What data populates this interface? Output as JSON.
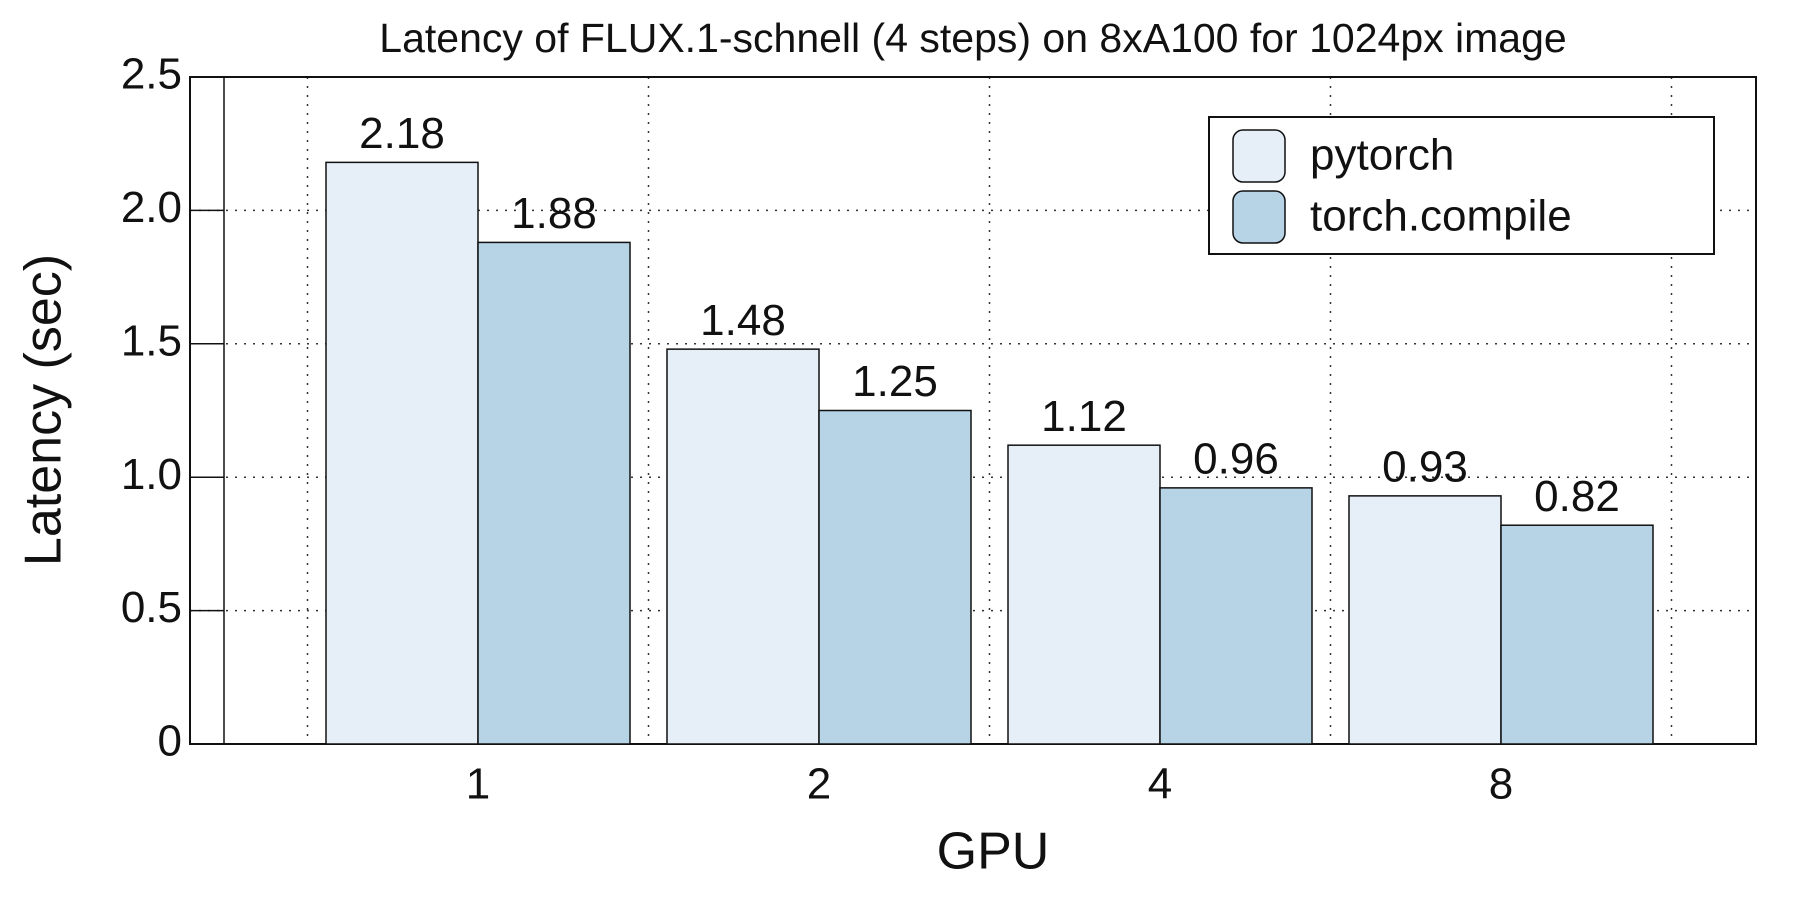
{
  "chart_data": {
    "type": "bar",
    "title": "Latency of FLUX.1-schnell (4 steps) on 8xA100 for 1024px image",
    "x_label": "GPU",
    "y_label": "Latency (sec)",
    "categories": [
      "1",
      "2",
      "4",
      "8"
    ],
    "series": [
      {
        "name": "pytorch",
        "color": "#e6eef8",
        "values": [
          2.18,
          1.48,
          1.12,
          0.93
        ]
      },
      {
        "name": "torch.compile",
        "color": "#b7d3e6",
        "values": [
          1.88,
          1.25,
          0.96,
          0.82
        ]
      }
    ],
    "ylim": [
      0,
      2.5
    ],
    "yticks": [
      0,
      0.5,
      {
        "value": 1,
        "label": "1.0"
      },
      1.5,
      {
        "value": 2,
        "label": "2.0"
      },
      2.5
    ],
    "grid": true,
    "legend": "upper right"
  }
}
